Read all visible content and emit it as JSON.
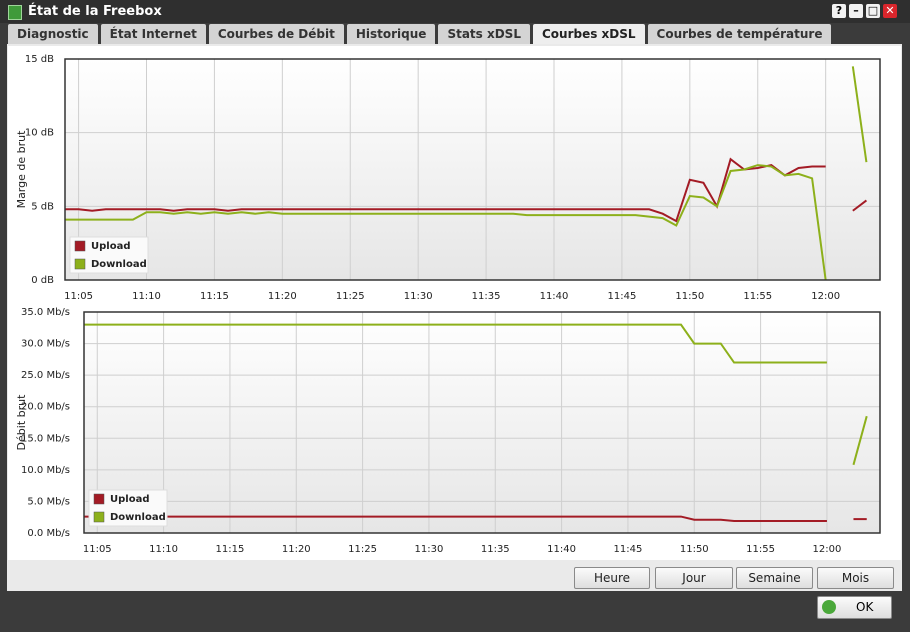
{
  "window": {
    "title": "État de la Freebox",
    "help": "?"
  },
  "tabs": [
    "Diagnostic",
    "État Internet",
    "Courbes de Débit",
    "Historique",
    "Stats xDSL",
    "Courbes xDSL",
    "Courbes de température"
  ],
  "active_tab": 5,
  "chart_data": [
    {
      "type": "line",
      "ylabel": "Marge de brut",
      "x": [
        "11:04",
        "11:05",
        "11:06",
        "11:07",
        "11:08",
        "11:09",
        "11:10",
        "11:11",
        "11:12",
        "11:13",
        "11:14",
        "11:15",
        "11:16",
        "11:17",
        "11:18",
        "11:19",
        "11:20",
        "11:21",
        "11:22",
        "11:23",
        "11:24",
        "11:25",
        "11:26",
        "11:27",
        "11:28",
        "11:29",
        "11:30",
        "11:31",
        "11:32",
        "11:33",
        "11:34",
        "11:35",
        "11:36",
        "11:37",
        "11:38",
        "11:39",
        "11:40",
        "11:41",
        "11:42",
        "11:43",
        "11:44",
        "11:45",
        "11:46",
        "11:47",
        "11:48",
        "11:49",
        "11:50",
        "11:51",
        "11:52",
        "11:53",
        "11:54",
        "11:55",
        "11:56",
        "11:57",
        "11:58",
        "11:59",
        "12:00",
        "12:01",
        "12:02",
        "12:03"
      ],
      "series": [
        {
          "name": "Upload",
          "color": "#a31b25",
          "values": [
            4.8,
            4.8,
            4.7,
            4.8,
            4.8,
            4.8,
            4.8,
            4.8,
            4.7,
            4.8,
            4.8,
            4.8,
            4.7,
            4.8,
            4.8,
            4.8,
            4.8,
            4.8,
            4.8,
            4.8,
            4.8,
            4.8,
            4.8,
            4.8,
            4.8,
            4.8,
            4.8,
            4.8,
            4.8,
            4.8,
            4.8,
            4.8,
            4.8,
            4.8,
            4.8,
            4.8,
            4.8,
            4.8,
            4.8,
            4.8,
            4.8,
            4.8,
            4.8,
            4.8,
            4.5,
            4.0,
            6.8,
            6.6,
            5.0,
            8.2,
            7.5,
            7.6,
            7.8,
            7.1,
            7.6,
            7.7,
            7.7,
            null,
            4.7,
            5.4
          ]
        },
        {
          "name": "Download",
          "color": "#8db01b",
          "values": [
            4.1,
            4.1,
            4.1,
            4.1,
            4.1,
            4.1,
            4.6,
            4.6,
            4.5,
            4.6,
            4.5,
            4.6,
            4.5,
            4.6,
            4.5,
            4.6,
            4.5,
            4.5,
            4.5,
            4.5,
            4.5,
            4.5,
            4.5,
            4.5,
            4.5,
            4.5,
            4.5,
            4.5,
            4.5,
            4.5,
            4.5,
            4.5,
            4.5,
            4.5,
            4.4,
            4.4,
            4.4,
            4.4,
            4.4,
            4.4,
            4.4,
            4.4,
            4.4,
            4.3,
            4.2,
            3.7,
            5.7,
            5.6,
            5.0,
            7.4,
            7.5,
            7.8,
            7.7,
            7.1,
            7.2,
            6.9,
            0,
            null,
            14.5,
            8.0
          ]
        }
      ],
      "xlim": [
        "11:04",
        "12:04"
      ],
      "xticks": [
        "11:05",
        "11:10",
        "11:15",
        "11:20",
        "11:25",
        "11:30",
        "11:35",
        "11:40",
        "11:45",
        "11:50",
        "11:55",
        "12:00"
      ],
      "ylim": [
        0,
        15
      ],
      "yticks": [
        {
          "value": 0,
          "label": "0 dB"
        },
        {
          "value": 5,
          "label": "5 dB"
        },
        {
          "value": 10,
          "label": "10 dB"
        },
        {
          "value": 15,
          "label": "15 dB"
        }
      ],
      "grid": true,
      "legend": "lower left"
    },
    {
      "type": "line",
      "ylabel": "Débit brut",
      "x": [
        "11:04",
        "11:05",
        "11:06",
        "11:07",
        "11:08",
        "11:09",
        "11:10",
        "11:11",
        "11:12",
        "11:13",
        "11:14",
        "11:15",
        "11:16",
        "11:17",
        "11:18",
        "11:19",
        "11:20",
        "11:21",
        "11:22",
        "11:23",
        "11:24",
        "11:25",
        "11:26",
        "11:27",
        "11:28",
        "11:29",
        "11:30",
        "11:31",
        "11:32",
        "11:33",
        "11:34",
        "11:35",
        "11:36",
        "11:37",
        "11:38",
        "11:39",
        "11:40",
        "11:41",
        "11:42",
        "11:43",
        "11:44",
        "11:45",
        "11:46",
        "11:47",
        "11:48",
        "11:49",
        "11:50",
        "11:51",
        "11:52",
        "11:53",
        "11:54",
        "11:55",
        "11:56",
        "11:57",
        "11:58",
        "11:59",
        "12:00",
        "12:01",
        "12:02",
        "12:03"
      ],
      "series": [
        {
          "name": "Upload",
          "color": "#a31b25",
          "values": [
            2.6,
            2.6,
            2.6,
            2.6,
            2.6,
            2.6,
            2.6,
            2.6,
            2.6,
            2.6,
            2.6,
            2.6,
            2.6,
            2.6,
            2.6,
            2.6,
            2.6,
            2.6,
            2.6,
            2.6,
            2.6,
            2.6,
            2.6,
            2.6,
            2.6,
            2.6,
            2.6,
            2.6,
            2.6,
            2.6,
            2.6,
            2.6,
            2.6,
            2.6,
            2.6,
            2.6,
            2.6,
            2.6,
            2.6,
            2.6,
            2.6,
            2.6,
            2.6,
            2.6,
            2.6,
            2.6,
            2.1,
            2.1,
            2.1,
            1.9,
            1.9,
            1.9,
            1.9,
            1.9,
            1.9,
            1.9,
            1.9,
            null,
            2.2,
            2.2
          ]
        },
        {
          "name": "Download",
          "color": "#8db01b",
          "values": [
            33.0,
            33.0,
            33.0,
            33.0,
            33.0,
            33.0,
            33.0,
            33.0,
            33.0,
            33.0,
            33.0,
            33.0,
            33.0,
            33.0,
            33.0,
            33.0,
            33.0,
            33.0,
            33.0,
            33.0,
            33.0,
            33.0,
            33.0,
            33.0,
            33.0,
            33.0,
            33.0,
            33.0,
            33.0,
            33.0,
            33.0,
            33.0,
            33.0,
            33.0,
            33.0,
            33.0,
            33.0,
            33.0,
            33.0,
            33.0,
            33.0,
            33.0,
            33.0,
            33.0,
            33.0,
            33.0,
            30.0,
            30.0,
            30.0,
            27.0,
            27.0,
            27.0,
            27.0,
            27.0,
            27.0,
            27.0,
            27.0,
            null,
            10.8,
            18.5
          ]
        }
      ],
      "xlim": [
        "11:04",
        "12:04"
      ],
      "xticks": [
        "11:05",
        "11:10",
        "11:15",
        "11:20",
        "11:25",
        "11:30",
        "11:35",
        "11:40",
        "11:45",
        "11:50",
        "11:55",
        "12:00"
      ],
      "ylim": [
        0,
        35
      ],
      "yticks": [
        {
          "value": 0,
          "label": "0.0 Mb/s"
        },
        {
          "value": 5,
          "label": "5.0 Mb/s"
        },
        {
          "value": 10,
          "label": "10.0 Mb/s"
        },
        {
          "value": 15,
          "label": "15.0 Mb/s"
        },
        {
          "value": 20,
          "label": "20.0 Mb/s"
        },
        {
          "value": 25,
          "label": "25.0 Mb/s"
        },
        {
          "value": 30,
          "label": "30.0 Mb/s"
        },
        {
          "value": 35,
          "label": "35.0 Mb/s"
        }
      ],
      "grid": true,
      "legend": "lower left"
    }
  ],
  "buttons": [
    "Heure",
    "Jour",
    "Semaine",
    "Mois"
  ],
  "ok_button": "OK"
}
